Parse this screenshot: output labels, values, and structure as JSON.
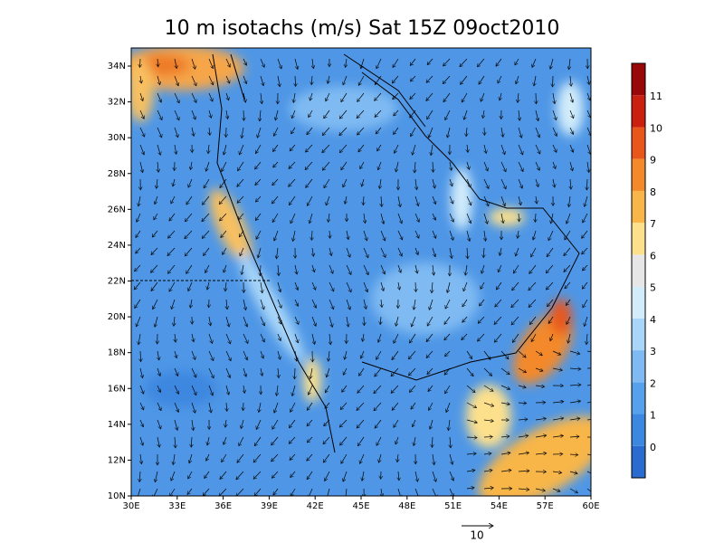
{
  "title": "10 m isotachs (m/s) Sat 15Z 09oct2010",
  "lat_labels": [
    "10N",
    "12N",
    "14N",
    "16N",
    "18N",
    "20N",
    "22N",
    "24N",
    "26N",
    "28N",
    "30N",
    "32N",
    "34N"
  ],
  "lon_labels": [
    "30E",
    "33E",
    "36E",
    "39E",
    "42E",
    "45E",
    "48E",
    "51E",
    "54E",
    "57E",
    "60E"
  ],
  "colorbar": {
    "labels": [
      "0",
      "1",
      "2",
      "3",
      "4",
      "5",
      "6",
      "7",
      "8",
      "9",
      "10",
      "11"
    ],
    "colors": [
      "#2a6bd0",
      "#3c87e0",
      "#56a0ec",
      "#7fbaf2",
      "#a9d6f8",
      "#d2ecfa",
      "#e6e6e6",
      "#fde08c",
      "#f8b64a",
      "#f3892a",
      "#e8561c",
      "#c92010",
      "#980808"
    ]
  },
  "reference_vector": {
    "label": "10"
  }
}
